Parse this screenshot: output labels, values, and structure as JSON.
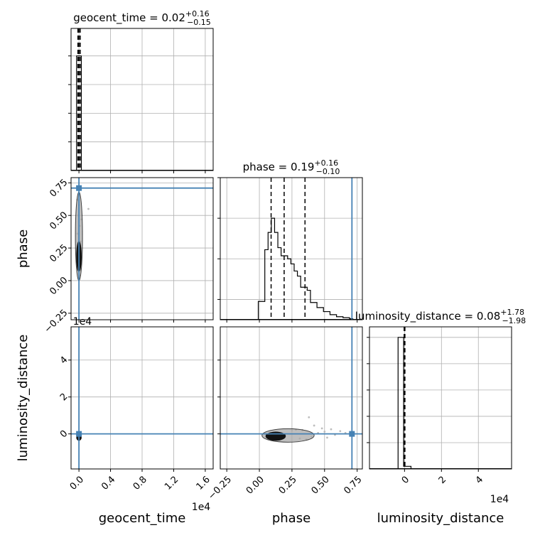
{
  "figure": {
    "axis_labels": {
      "geocent_time": "geocent_time",
      "phase": "phase",
      "luminosity_distance": "luminosity_distance"
    },
    "offset_text": "1e4",
    "colors": {
      "hist_line": "#000000",
      "truth_line": "#4682b4",
      "grid": "#b0b0b0",
      "scatter_points": "#bdbdbd",
      "contour_inner": "#000000",
      "contour_outer": "#a9a9a9"
    }
  },
  "chart_data": [
    {
      "panel": "geocent_time-marginal",
      "type": "bar",
      "title": {
        "base": "geocent_time = 0.02",
        "sup": "+0.16",
        "sub": "−0.15"
      },
      "x_param": "geocent_time",
      "x_offset": "1e4",
      "xlim": [
        -0.1,
        1.7
      ],
      "xticks": [
        0.0,
        0.4,
        0.8,
        1.2,
        1.6
      ],
      "histogram": {
        "bin_edges": [
          -0.03,
          0.03
        ],
        "counts": [
          1.0
        ]
      },
      "ylim": [
        0,
        1.24
      ],
      "yticks": [
        0.25,
        0.5,
        0.75,
        1.0
      ],
      "quantile_lines": [
        -0.013,
        0.0002,
        0.016
      ],
      "grid": true
    },
    {
      "panel": "phase-marginal",
      "type": "bar",
      "title": {
        "base": "phase = 0.19",
        "sup": "+0.16",
        "sub": "−0.10"
      },
      "x_param": "phase",
      "xlim": [
        -0.3,
        0.79
      ],
      "xticks": [
        -0.25,
        0.0,
        0.25,
        0.5,
        0.75
      ],
      "histogram": {
        "bin_edges": [
          -0.0083,
          0.0417,
          0.0667,
          0.0917,
          0.1167,
          0.1417,
          0.1667,
          0.1917,
          0.2167,
          0.2417,
          0.2667,
          0.2917,
          0.3167,
          0.3417,
          0.3667,
          0.3917,
          0.4417,
          0.4917,
          0.5417,
          0.5917,
          0.6417,
          0.6917,
          0.7167
        ],
        "counts": [
          0.18,
          0.69,
          0.86,
          1.0,
          0.86,
          0.71,
          0.63,
          0.63,
          0.6,
          0.55,
          0.48,
          0.43,
          0.32,
          0.32,
          0.29,
          0.17,
          0.12,
          0.08,
          0.05,
          0.03,
          0.02,
          0.01
        ]
      },
      "ylim": [
        0,
        1.4
      ],
      "yticks": [
        0.2,
        0.6,
        1.0,
        1.4
      ],
      "quantile_lines": [
        0.09,
        0.19,
        0.35
      ],
      "truth": 0.71,
      "grid": true
    },
    {
      "panel": "luminosity_distance-marginal",
      "type": "bar",
      "title": {
        "base": "luminosity_distance = 0.08",
        "sup": "+1.78",
        "sub": "−1.98"
      },
      "x_param": "luminosity_distance",
      "x_offset": "1e4",
      "xlim": [
        -1.9,
        5.8
      ],
      "xticks": [
        0,
        2,
        4
      ],
      "histogram": {
        "bin_edges": [
          -0.35,
          -0.05,
          0.35
        ],
        "counts": [
          1.0,
          0.02
        ]
      },
      "ylim": [
        0,
        1.08
      ],
      "yticks": [
        0.2,
        0.4,
        0.6,
        0.8,
        1.0
      ],
      "quantile_lines": [
        -0.02,
        0.01,
        0.02
      ],
      "grid": true
    },
    {
      "panel": "phase-vs-geocent_time",
      "type": "scatter",
      "x_param": "geocent_time",
      "y_param": "phase",
      "xlim": [
        -0.1,
        1.7
      ],
      "ylim": [
        -0.3,
        0.79
      ],
      "xticks": [
        0.0,
        0.4,
        0.8,
        1.2,
        1.6
      ],
      "yticks": [
        -0.25,
        0.0,
        0.25,
        0.5,
        0.75
      ],
      "ytick_labels": [
        "−0.25",
        "0.00",
        "0.25",
        "0.50",
        "0.75"
      ],
      "points": [
        [
          0.0,
          0.72
        ],
        [
          -0.01,
          0.5
        ],
        [
          0.01,
          0.42
        ],
        [
          -0.02,
          0.36
        ],
        [
          0.02,
          0.3
        ],
        [
          0.0,
          0.58
        ],
        [
          -0.01,
          0.08
        ],
        [
          0.01,
          0.04
        ],
        [
          0.0,
          0.02
        ],
        [
          0.12,
          0.55
        ],
        [
          0.03,
          0.47
        ],
        [
          -0.02,
          0.62
        ]
      ],
      "contours": [
        {
          "level": "outer",
          "x_halfwidth": 0.045,
          "y_range": [
            0.0,
            0.68
          ]
        },
        {
          "level": "inner",
          "x_halfwidth": 0.03,
          "y_range": [
            0.07,
            0.3
          ]
        }
      ],
      "truth": {
        "x": 0.0,
        "y": 0.71
      },
      "grid": true
    },
    {
      "panel": "luminosity_distance-vs-geocent_time",
      "type": "scatter",
      "x_param": "geocent_time",
      "y_param": "luminosity_distance",
      "x_offset": "1e4",
      "y_offset": "1e4",
      "xlim": [
        -0.1,
        1.7
      ],
      "ylim": [
        -1.9,
        5.8
      ],
      "xticks": [
        0.0,
        0.4,
        0.8,
        1.2,
        1.6
      ],
      "xtick_labels": [
        "0.0",
        "0.4",
        "0.8",
        "1.2",
        "1.6"
      ],
      "yticks": [
        0,
        2,
        4
      ],
      "ytick_labels": [
        "0",
        "2",
        "4"
      ],
      "points": [
        [
          -0.01,
          -0.3
        ],
        [
          0.01,
          -0.25
        ],
        [
          0.0,
          -0.35
        ]
      ],
      "contours": [
        {
          "level": "inner",
          "x_halfwidth": 0.03,
          "y_range": [
            -0.35,
            -0.05
          ]
        }
      ],
      "truth": {
        "x": 0.0,
        "y": 0.0
      },
      "grid": true
    },
    {
      "panel": "luminosity_distance-vs-phase",
      "type": "scatter",
      "x_param": "phase",
      "y_param": "luminosity_distance",
      "xlim": [
        -0.3,
        0.79
      ],
      "ylim": [
        -1.9,
        5.8
      ],
      "xticks": [
        -0.25,
        0.0,
        0.25,
        0.5,
        0.75
      ],
      "xtick_labels": [
        "−0.25",
        "0.00",
        "0.25",
        "0.50",
        "0.75"
      ],
      "yticks": [
        0,
        2,
        4
      ],
      "points": [
        [
          0.38,
          0.9
        ],
        [
          0.42,
          0.45
        ],
        [
          0.48,
          0.3
        ],
        [
          0.33,
          0.2
        ],
        [
          0.55,
          0.25
        ],
        [
          0.62,
          0.15
        ],
        [
          0.25,
          0.18
        ],
        [
          0.45,
          0.05
        ],
        [
          0.52,
          -0.2
        ],
        [
          0.36,
          -0.3
        ],
        [
          0.58,
          -0.05
        ],
        [
          0.28,
          0.22
        ],
        [
          0.4,
          -0.15
        ],
        [
          0.66,
          0.05
        ],
        [
          0.5,
          0.12
        ],
        [
          0.31,
          -0.25
        ]
      ],
      "contours": [
        {
          "level": "outer",
          "x_range": [
            0.02,
            0.42
          ],
          "y_range": [
            -0.45,
            0.28
          ]
        },
        {
          "level": "inner",
          "x_range": [
            0.05,
            0.2
          ],
          "y_range": [
            -0.35,
            0.1
          ]
        }
      ],
      "truth": {
        "x": 0.71,
        "y": 0.0
      },
      "grid": true
    }
  ]
}
